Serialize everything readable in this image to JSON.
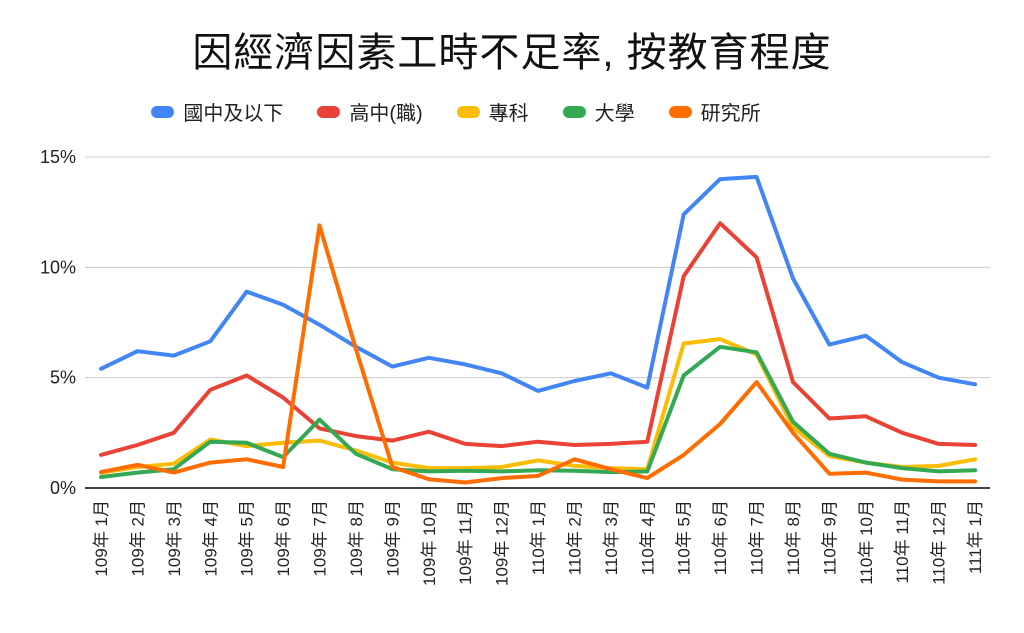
{
  "chart_data": {
    "type": "line",
    "title": "因經濟因素工時不足率, 按教育程度",
    "xlabel": "",
    "ylabel": "",
    "ylim": [
      0,
      15
    ],
    "grid": true,
    "legend_position": "top",
    "y_ticks": [
      {
        "label": "0%",
        "value": 0
      },
      {
        "label": "5%",
        "value": 5
      },
      {
        "label": "10%",
        "value": 10
      },
      {
        "label": "15%",
        "value": 15
      }
    ],
    "categories": [
      "109年 1月",
      "109年 2月",
      "109年 3月",
      "109年 4月",
      "109年 5月",
      "109年 6月",
      "109年 7月",
      "109年 8月",
      "109年 9月",
      "109年 10月",
      "109年 11月",
      "109年 12月",
      "110年 1月",
      "110年 2月",
      "110年 3月",
      "110年 4月",
      "110年 5月",
      "110年 6月",
      "110年 7月",
      "110年 8月",
      "110年 9月",
      "110年 10月",
      "110年 11月",
      "110年 12月",
      "111年 1月"
    ],
    "series": [
      {
        "name": "國中及以下",
        "color": "#4285F4",
        "values": [
          5.4,
          6.2,
          6.0,
          6.65,
          8.9,
          8.3,
          7.4,
          6.4,
          5.5,
          5.9,
          5.6,
          5.2,
          4.4,
          4.85,
          5.2,
          4.55,
          12.4,
          14.0,
          14.1,
          9.5,
          6.5,
          6.9,
          5.7,
          5.0,
          4.7
        ]
      },
      {
        "name": "高中(職)",
        "color": "#EA4335",
        "values": [
          1.5,
          1.95,
          2.5,
          4.45,
          5.1,
          4.1,
          2.7,
          2.35,
          2.15,
          2.55,
          2.0,
          1.9,
          2.1,
          1.95,
          2.0,
          2.1,
          9.6,
          12.0,
          10.45,
          4.8,
          3.15,
          3.25,
          2.5,
          2.0,
          1.95
        ]
      },
      {
        "name": "專科",
        "color": "#FBBC04",
        "values": [
          0.7,
          0.95,
          1.1,
          2.2,
          1.9,
          2.05,
          2.15,
          1.7,
          1.15,
          0.9,
          0.9,
          0.95,
          1.25,
          1.0,
          0.9,
          0.85,
          6.55,
          6.75,
          6.05,
          2.75,
          1.45,
          1.15,
          0.95,
          1.0,
          1.3
        ]
      },
      {
        "name": "大學",
        "color": "#34A853",
        "values": [
          0.5,
          0.7,
          0.85,
          2.1,
          2.05,
          1.4,
          3.1,
          1.55,
          0.85,
          0.75,
          0.78,
          0.75,
          0.8,
          0.78,
          0.72,
          0.75,
          5.1,
          6.4,
          6.15,
          3.0,
          1.55,
          1.15,
          0.9,
          0.75,
          0.8
        ]
      },
      {
        "name": "研究所",
        "color": "#FF6D01",
        "values": [
          0.72,
          1.05,
          0.7,
          1.15,
          1.3,
          0.95,
          11.9,
          6.3,
          0.95,
          0.4,
          0.25,
          0.45,
          0.55,
          1.3,
          0.85,
          0.45,
          1.5,
          2.9,
          4.8,
          2.5,
          0.65,
          0.7,
          0.38,
          0.3,
          0.3
        ]
      }
    ],
    "style_colors": {
      "gridline": "#cccccc",
      "axis_line": "#424242",
      "tick_text": "#222222",
      "title_text": "#111111",
      "background": "#ffffff"
    }
  }
}
